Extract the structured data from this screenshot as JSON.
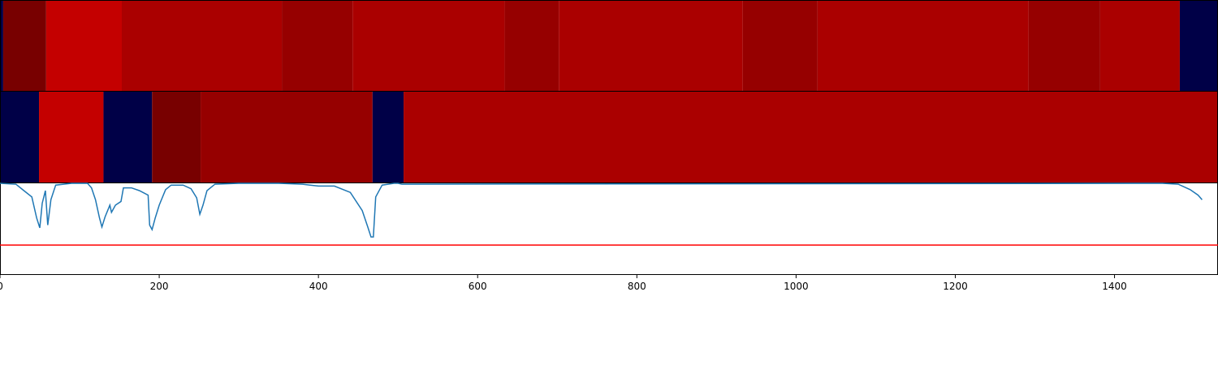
{
  "chart_data": {
    "type": "heatmap",
    "xlim": [
      0,
      1530
    ],
    "x_ticks": [
      0,
      200,
      400,
      600,
      800,
      1000,
      1200,
      1400
    ],
    "tick_labels": [
      "0",
      "200",
      "400",
      "600",
      "800",
      "1000",
      "1200",
      "1400"
    ],
    "colors": {
      "navy": "#000047",
      "darkest_red": "#780000",
      "dark_red": "#960000",
      "red": "#aa0000",
      "bright_red": "#c40000",
      "line": "#1f77b4",
      "threshold": "#ff0000",
      "frame": "#000000"
    },
    "heatmap_rows": [
      {
        "segments": [
          {
            "start": 0,
            "end": 4,
            "color": "navy"
          },
          {
            "start": 4,
            "end": 58,
            "color": "darkest_red"
          },
          {
            "start": 58,
            "end": 153,
            "color": "bright_red"
          },
          {
            "start": 153,
            "end": 354,
            "color": "red"
          },
          {
            "start": 354,
            "end": 443,
            "color": "dark_red"
          },
          {
            "start": 443,
            "end": 634,
            "color": "red"
          },
          {
            "start": 634,
            "end": 702,
            "color": "dark_red"
          },
          {
            "start": 702,
            "end": 933,
            "color": "red"
          },
          {
            "start": 933,
            "end": 1027,
            "color": "dark_red"
          },
          {
            "start": 1027,
            "end": 1292,
            "color": "red"
          },
          {
            "start": 1292,
            "end": 1382,
            "color": "dark_red"
          },
          {
            "start": 1382,
            "end": 1482,
            "color": "red"
          },
          {
            "start": 1482,
            "end": 1530,
            "color": "navy"
          }
        ]
      },
      {
        "segments": [
          {
            "start": 0,
            "end": 49,
            "color": "navy"
          },
          {
            "start": 49,
            "end": 130,
            "color": "bright_red"
          },
          {
            "start": 130,
            "end": 191,
            "color": "navy"
          },
          {
            "start": 191,
            "end": 252,
            "color": "darkest_red"
          },
          {
            "start": 252,
            "end": 468,
            "color": "dark_red"
          },
          {
            "start": 468,
            "end": 507,
            "color": "navy"
          },
          {
            "start": 507,
            "end": 1530,
            "color": "red"
          }
        ]
      }
    ],
    "line_series": {
      "ylim": [
        0,
        1
      ],
      "threshold": 0.32,
      "points": [
        [
          0,
          1.0
        ],
        [
          20,
          0.99
        ],
        [
          30,
          0.92
        ],
        [
          40,
          0.85
        ],
        [
          46,
          0.62
        ],
        [
          50,
          0.51
        ],
        [
          53,
          0.78
        ],
        [
          57,
          0.92
        ],
        [
          60,
          0.54
        ],
        [
          64,
          0.82
        ],
        [
          70,
          0.98
        ],
        [
          90,
          1.0
        ],
        [
          110,
          1.0
        ],
        [
          115,
          0.95
        ],
        [
          120,
          0.82
        ],
        [
          125,
          0.62
        ],
        [
          128,
          0.52
        ],
        [
          132,
          0.63
        ],
        [
          138,
          0.76
        ],
        [
          140,
          0.68
        ],
        [
          145,
          0.76
        ],
        [
          152,
          0.8
        ],
        [
          155,
          0.95
        ],
        [
          165,
          0.95
        ],
        [
          175,
          0.92
        ],
        [
          186,
          0.87
        ],
        [
          188,
          0.54
        ],
        [
          191,
          0.49
        ],
        [
          195,
          0.62
        ],
        [
          200,
          0.76
        ],
        [
          208,
          0.93
        ],
        [
          215,
          0.98
        ],
        [
          230,
          0.98
        ],
        [
          240,
          0.94
        ],
        [
          247,
          0.84
        ],
        [
          251,
          0.66
        ],
        [
          255,
          0.76
        ],
        [
          260,
          0.92
        ],
        [
          270,
          0.99
        ],
        [
          300,
          1.0
        ],
        [
          350,
          1.0
        ],
        [
          380,
          0.99
        ],
        [
          400,
          0.97
        ],
        [
          420,
          0.97
        ],
        [
          440,
          0.9
        ],
        [
          455,
          0.7
        ],
        [
          462,
          0.52
        ],
        [
          466,
          0.41
        ],
        [
          469,
          0.41
        ],
        [
          472,
          0.85
        ],
        [
          480,
          0.98
        ],
        [
          495,
          1.0
        ],
        [
          500,
          1.0
        ],
        [
          505,
          0.99
        ],
        [
          1460,
          1.0
        ],
        [
          1480,
          0.99
        ],
        [
          1495,
          0.93
        ],
        [
          1505,
          0.87
        ],
        [
          1510,
          0.82
        ]
      ]
    }
  }
}
